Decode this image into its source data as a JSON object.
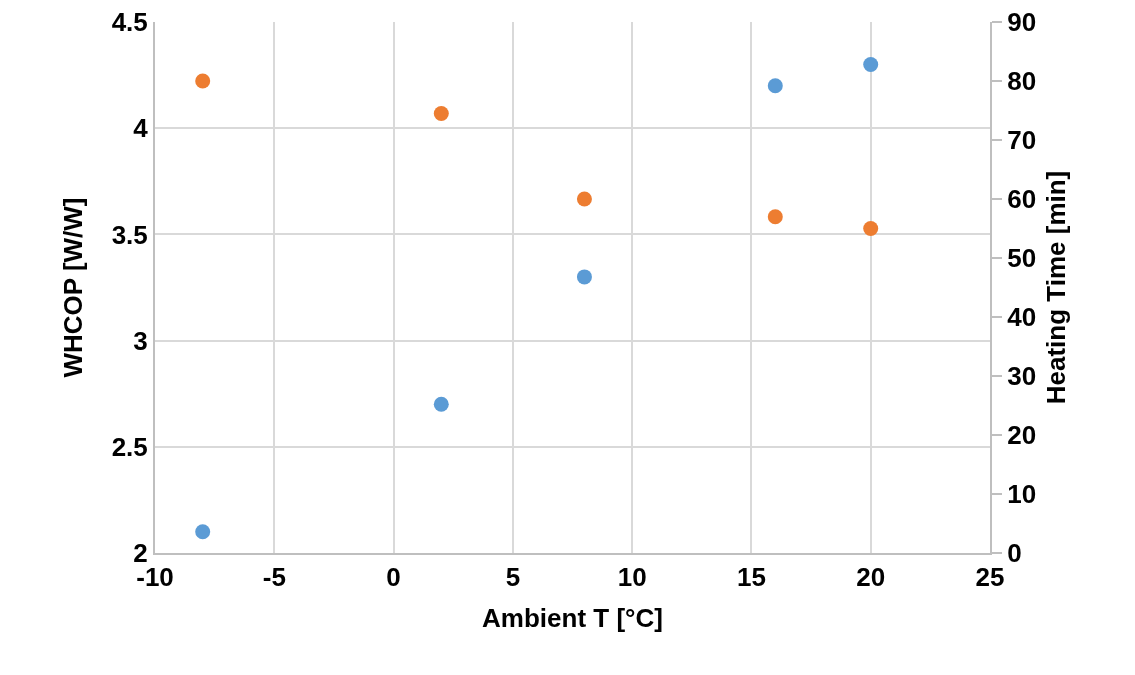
{
  "chart_data": {
    "type": "scatter",
    "xlabel": "Ambient T [°C]",
    "ylabel": "WHCOP [W/W]",
    "y2label": "Heating Time [min]",
    "x": [
      -8,
      2,
      8,
      16,
      20
    ],
    "series": [
      {
        "color": "#5b9bd5",
        "values": [
          2.1,
          2.7,
          3.3,
          4.2,
          4.3
        ]
      },
      {
        "color": "#ed7d31",
        "values": [
          80,
          74.5,
          60,
          57,
          55
        ],
        "axis": "y2"
      }
    ],
    "xlim": [
      -10,
      25
    ],
    "xticks": [
      -10,
      -5,
      0,
      5,
      10,
      15,
      20,
      25
    ],
    "ylim": [
      2,
      4.5
    ],
    "yticks": [
      2,
      2.5,
      3,
      3.5,
      4,
      4.5
    ],
    "y2lim": [
      0,
      90
    ],
    "y2ticks": [
      0,
      10,
      20,
      30,
      40,
      50,
      60,
      70,
      80,
      90
    ],
    "grid": true,
    "marker": "circle"
  }
}
